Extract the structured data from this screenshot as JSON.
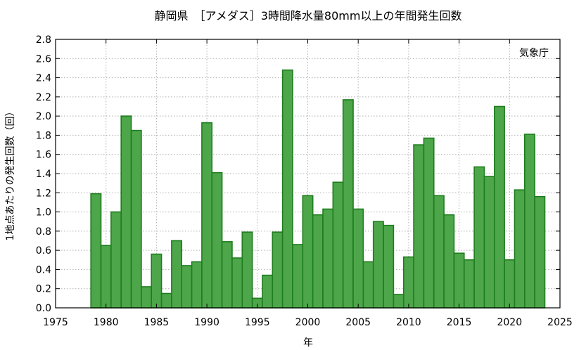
{
  "chart_data": {
    "type": "bar",
    "title": "静岡県　［アメダス］3時間降水量80mm以上の年間発生回数",
    "xlabel": "年",
    "ylabel": "1地点あたりの発生回数（回）",
    "annotation": "気象庁",
    "xlim": [
      1975,
      2025
    ],
    "ylim": [
      0,
      2.8
    ],
    "xticks": [
      1975,
      1980,
      1985,
      1990,
      1995,
      2000,
      2005,
      2010,
      2015,
      2020,
      2025
    ],
    "yticks": [
      "0.0",
      "0.2",
      "0.4",
      "0.6",
      "0.8",
      "1.0",
      "1.2",
      "1.4",
      "1.6",
      "1.8",
      "2.0",
      "2.2",
      "2.4",
      "2.6",
      "2.8"
    ],
    "grid": true,
    "bar_fill": "#4ea64a",
    "bar_stroke": "#1e7d1e",
    "years": [
      1979,
      1980,
      1981,
      1982,
      1983,
      1984,
      1985,
      1986,
      1987,
      1988,
      1989,
      1990,
      1991,
      1992,
      1993,
      1994,
      1995,
      1996,
      1997,
      1998,
      1999,
      2000,
      2001,
      2002,
      2003,
      2004,
      2005,
      2006,
      2007,
      2008,
      2009,
      2010,
      2011,
      2012,
      2013,
      2014,
      2015,
      2016,
      2017,
      2018,
      2019,
      2020,
      2021,
      2022,
      2023
    ],
    "values": [
      1.19,
      0.65,
      1.0,
      2.0,
      1.85,
      0.22,
      0.56,
      0.15,
      0.7,
      0.44,
      0.48,
      1.93,
      1.41,
      0.69,
      0.52,
      0.79,
      0.1,
      0.34,
      0.79,
      2.48,
      0.66,
      1.17,
      0.97,
      1.03,
      1.31,
      2.17,
      1.03,
      0.48,
      0.9,
      0.86,
      0.14,
      0.53,
      1.7,
      1.77,
      1.17,
      0.97,
      0.57,
      0.5,
      1.47,
      1.37,
      2.1,
      0.5,
      1.23,
      1.81,
      1.16
    ]
  }
}
